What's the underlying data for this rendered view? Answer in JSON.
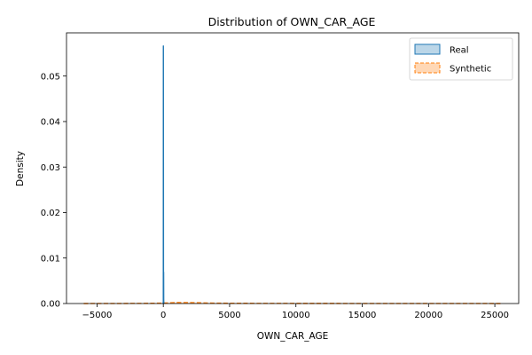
{
  "chart_data": {
    "type": "area",
    "title": "Distribution of OWN_CAR_AGE",
    "xlabel": "OWN_CAR_AGE",
    "ylabel": "Density",
    "xlim": [
      -7300,
      26800
    ],
    "ylim": [
      0,
      0.0595
    ],
    "xticks": [
      -5000,
      0,
      5000,
      10000,
      15000,
      20000,
      25000
    ],
    "xtick_labels": [
      "−5000",
      "0",
      "5000",
      "10000",
      "15000",
      "20000",
      "25000"
    ],
    "yticks": [
      0,
      0.01,
      0.02,
      0.03,
      0.04,
      0.05
    ],
    "ytick_labels": [
      "0.00",
      "0.01",
      "0.02",
      "0.03",
      "0.04",
      "0.05"
    ],
    "grid": false,
    "legend_position": "top-right",
    "series": [
      {
        "name": "Real",
        "color": "#1f77b4",
        "fill_alpha": 0.3,
        "dash": false,
        "x": [
          -20,
          0,
          5,
          10,
          15,
          20,
          25,
          30,
          35,
          40,
          45,
          60,
          80
        ],
        "y": [
          0,
          0.0003,
          0.0566,
          0.031,
          0.0025,
          0.0006,
          0.0069,
          0.001,
          0.0004,
          0.0001,
          5e-05,
          2e-05,
          0
        ]
      },
      {
        "name": "Synthetic",
        "color": "#ff7f0e",
        "fill_alpha": 0.3,
        "dash": true,
        "x": [
          -6000,
          -3000,
          -1000,
          0,
          1000,
          2000,
          4000,
          8000,
          15000,
          22000,
          25500
        ],
        "y": [
          0,
          2e-05,
          5e-05,
          0.0001,
          0.00022,
          0.0002,
          8e-05,
          3e-05,
          2e-05,
          1e-05,
          0
        ]
      }
    ]
  }
}
